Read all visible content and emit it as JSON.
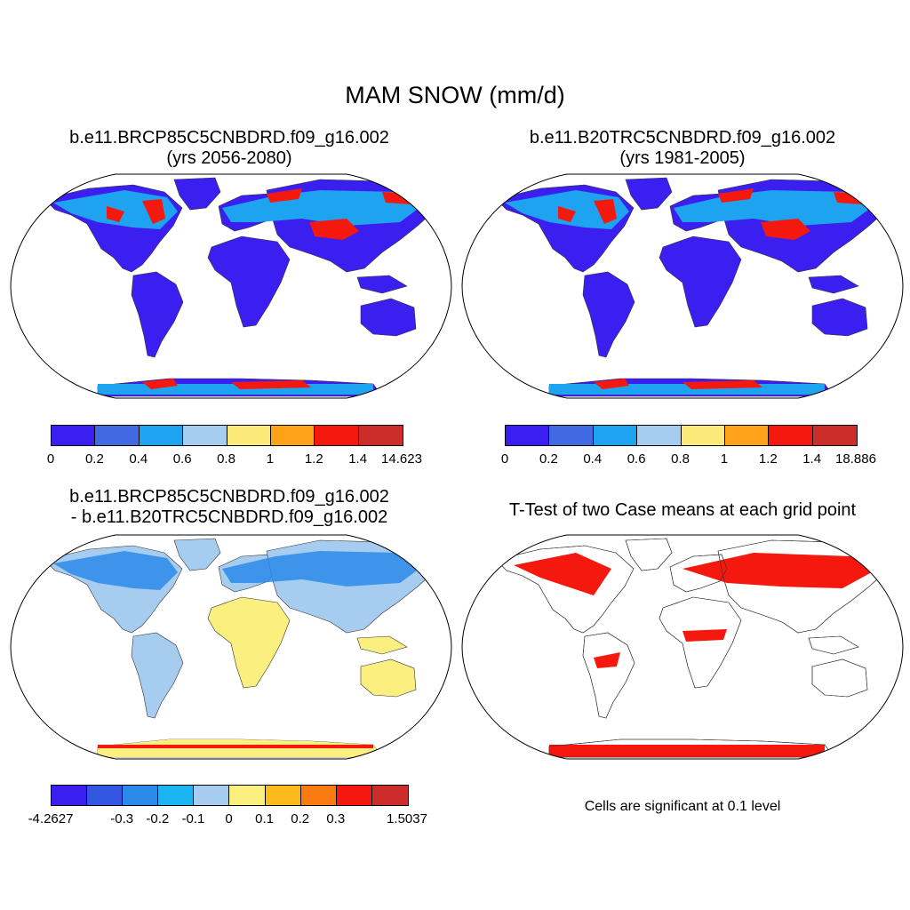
{
  "figure_title": "MAM SNOW (mm/d)",
  "panels": {
    "top_left": {
      "title_line1": "b.e11.BRCP85C5CNBDRD.f09_g16.002",
      "title_line2": "(yrs 2056-2080)"
    },
    "top_right": {
      "title_line1": "b.e11.B20TRC5CNBDRD.f09_g16.002",
      "title_line2": "(yrs 1981-2005)"
    },
    "bottom_left": {
      "title_line1": "b.e11.BRCP85C5CNBDRD.f09_g16.002",
      "title_line2": "- b.e11.B20TRC5CNBDRD.f09_g16.002"
    },
    "bottom_right": {
      "title": "T-Test of two Case means at each grid point",
      "note": "Cells are significant at 0.1 level"
    }
  },
  "colorbars": {
    "top_left": {
      "colors": [
        "#3b1ff0",
        "#4169e1",
        "#1ea3f0",
        "#a6cdef",
        "#fbe97a",
        "#fea21a",
        "#f5180e",
        "#cd2d2a"
      ],
      "labels": [
        "0",
        "0.2",
        "0.4",
        "0.6",
        "0.8",
        "1",
        "1.2",
        "1.4",
        "14.623"
      ]
    },
    "top_right": {
      "colors": [
        "#3b1ff0",
        "#4169e1",
        "#1ea3f0",
        "#a6cdef",
        "#fbe97a",
        "#fea21a",
        "#f5180e",
        "#cd2d2a"
      ],
      "labels": [
        "0",
        "0.2",
        "0.4",
        "0.6",
        "0.8",
        "1",
        "1.2",
        "1.4",
        "18.886"
      ]
    },
    "bottom_left": {
      "colors": [
        "#3b1ff0",
        "#3457e3",
        "#2b8ae9",
        "#1bb6f1",
        "#a6cdef",
        "#fbef80",
        "#fcba1c",
        "#f97b12",
        "#f5180e",
        "#cd2d2a"
      ],
      "labels": [
        "-4.2627",
        "",
        "-0.3",
        "-0.2",
        "-0.1",
        "0",
        "0.1",
        "0.2",
        "0.3",
        "",
        "1.5037"
      ]
    }
  },
  "map_colors": {
    "land_low": "#3b1ff0",
    "land_mid": "#1ea3f0",
    "land_high": "#f5180e",
    "diff_main": "#a6cdef",
    "diff_pos": "#fbef80",
    "diff_neg": "#2b8ae9",
    "significant": "#f5180e"
  }
}
